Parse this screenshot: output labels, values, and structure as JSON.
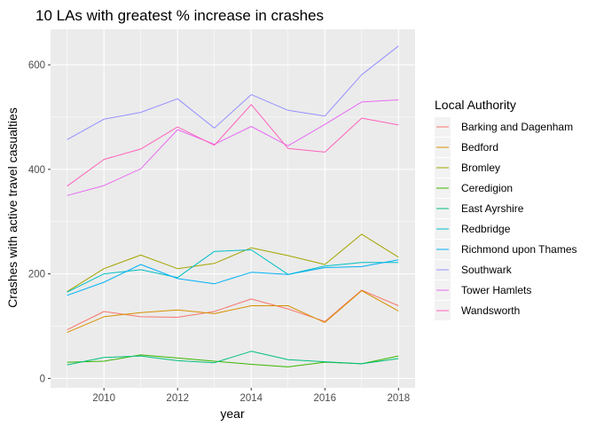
{
  "chart_data": {
    "type": "line",
    "title": "10 LAs with greatest % increase in crashes",
    "xlabel": "year",
    "ylabel": "Crashes with active travel casualties",
    "x": [
      2009,
      2010,
      2011,
      2012,
      2013,
      2014,
      2015,
      2016,
      2017,
      2018
    ],
    "xlim": [
      2008.55,
      2018.45
    ],
    "ylim": [
      -18,
      668
    ],
    "x_ticks": [
      2010,
      2012,
      2014,
      2016,
      2018
    ],
    "y_ticks": [
      0,
      200,
      400,
      600
    ],
    "grid": true,
    "legend": {
      "title": "Local Authority",
      "placement": "right"
    },
    "series": [
      {
        "name": "Barking and Dagenham",
        "color": "#F8766D",
        "values": [
          93,
          128,
          118,
          117,
          128,
          152,
          133,
          109,
          169,
          139
        ]
      },
      {
        "name": "Bedford",
        "color": "#D89000",
        "values": [
          88,
          118,
          126,
          131,
          124,
          139,
          139,
          107,
          168,
          129
        ]
      },
      {
        "name": "Bromley",
        "color": "#A3A500",
        "values": [
          166,
          210,
          236,
          210,
          220,
          250,
          235,
          218,
          276,
          232
        ]
      },
      {
        "name": "Ceredigion",
        "color": "#39B600",
        "values": [
          31,
          33,
          45,
          39,
          33,
          27,
          22,
          31,
          28,
          43
        ]
      },
      {
        "name": "East Ayrshire",
        "color": "#00BF7D",
        "values": [
          26,
          40,
          43,
          34,
          30,
          52,
          36,
          32,
          28,
          38
        ]
      },
      {
        "name": "Redbridge",
        "color": "#00BFC4",
        "values": [
          165,
          200,
          208,
          193,
          243,
          246,
          199,
          215,
          222,
          222
        ]
      },
      {
        "name": "Richmond upon Thames",
        "color": "#00B0F6",
        "values": [
          159,
          184,
          218,
          191,
          181,
          203,
          199,
          212,
          214,
          227
        ]
      },
      {
        "name": "Southwark",
        "color": "#9590FF",
        "values": [
          457,
          496,
          509,
          535,
          479,
          543,
          513,
          502,
          581,
          636
        ]
      },
      {
        "name": "Tower Hamlets",
        "color": "#E76BF3",
        "values": [
          350,
          369,
          401,
          476,
          448,
          482,
          445,
          486,
          529,
          533
        ]
      },
      {
        "name": "Wandsworth",
        "color": "#FF62BC",
        "values": [
          368,
          419,
          439,
          481,
          446,
          524,
          440,
          433,
          498,
          485
        ]
      }
    ]
  }
}
